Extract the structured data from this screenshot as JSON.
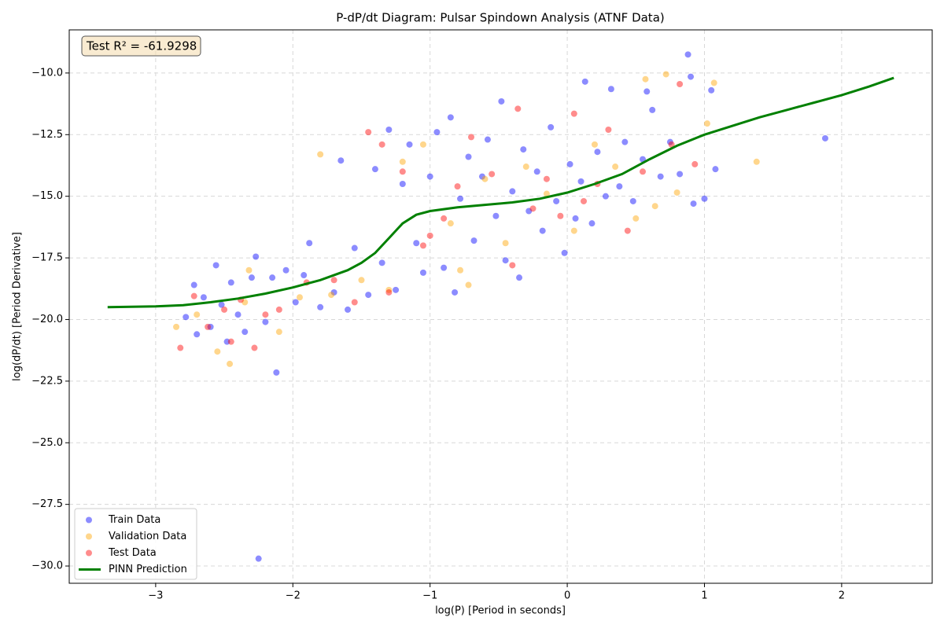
{
  "chart_data": {
    "type": "scatter",
    "title": "P-dP/dt Diagram: Pulsar Spindown Analysis (ATNF Data)",
    "x_label": "log(P) [Period in seconds]",
    "y_label": "log(dP/dt) [Period Derivative]",
    "annotation": "Test R² = -61.9298",
    "xlim": [
      -3.63,
      2.66
    ],
    "ylim": [
      -30.7,
      -8.25
    ],
    "xticks": [
      {
        "value": -3,
        "label": "−3"
      },
      {
        "value": -2,
        "label": "−2"
      },
      {
        "value": -1,
        "label": "−1"
      },
      0,
      1,
      2
    ],
    "yticks": [
      {
        "value": -30,
        "label": "−30.0"
      },
      {
        "value": -27.5,
        "label": "−27.5"
      },
      {
        "value": -25,
        "label": "−25.0"
      },
      {
        "value": -22.5,
        "label": "−22.5"
      },
      {
        "value": -20,
        "label": "−20.0"
      },
      {
        "value": -17.5,
        "label": "−17.5"
      },
      {
        "value": -15,
        "label": "−15.0"
      },
      {
        "value": -12.5,
        "label": "−12.5"
      },
      {
        "value": -10,
        "label": "−10.0"
      }
    ],
    "grid": true,
    "legend": "lower left",
    "series": [
      {
        "name": "Train Data",
        "type": "scatter",
        "color": "#0000ff",
        "x": [
          -2.78,
          -2.72,
          -2.7,
          -2.65,
          -2.6,
          -2.56,
          -2.52,
          -2.48,
          -2.45,
          -2.4,
          -2.35,
          -2.3,
          -2.27,
          -2.25,
          -2.2,
          -2.15,
          -2.12,
          -2.05,
          -1.98,
          -1.92,
          -1.88,
          -1.8,
          -1.7,
          -1.65,
          -1.6,
          -1.55,
          -1.45,
          -1.4,
          -1.35,
          -1.3,
          -1.25,
          -1.2,
          -1.15,
          -1.1,
          -1.05,
          -1.0,
          -0.95,
          -0.9,
          -0.85,
          -0.82,
          -0.78,
          -0.72,
          -0.68,
          -0.62,
          -0.58,
          -0.52,
          -0.48,
          -0.45,
          -0.4,
          -0.35,
          -0.32,
          -0.28,
          -0.22,
          -0.18,
          -0.12,
          -0.08,
          -0.02,
          0.02,
          0.06,
          0.1,
          0.13,
          0.18,
          0.22,
          0.28,
          0.32,
          0.38,
          0.42,
          0.48,
          0.55,
          0.58,
          0.62,
          0.68,
          0.75,
          0.82,
          0.88,
          0.9,
          0.92,
          1.0,
          1.05,
          1.08,
          1.88
        ],
        "values": [
          -19.9,
          -18.6,
          -20.6,
          -19.1,
          -20.3,
          -17.8,
          -19.4,
          -20.9,
          -18.5,
          -19.8,
          -20.5,
          -18.3,
          -17.45,
          -29.7,
          -20.1,
          -18.3,
          -22.15,
          -18.0,
          -19.3,
          -18.2,
          -16.9,
          -19.5,
          -18.9,
          -13.55,
          -19.6,
          -17.1,
          -19.0,
          -13.9,
          -17.7,
          -12.3,
          -18.8,
          -14.5,
          -12.9,
          -16.9,
          -18.1,
          -14.2,
          -12.4,
          -17.9,
          -11.8,
          -18.9,
          -15.1,
          -13.4,
          -16.8,
          -14.2,
          -12.7,
          -15.8,
          -11.15,
          -17.6,
          -14.8,
          -18.3,
          -13.1,
          -15.6,
          -14.0,
          -16.4,
          -12.2,
          -15.2,
          -17.3,
          -13.7,
          -15.9,
          -14.4,
          -10.35,
          -16.1,
          -13.2,
          -15.0,
          -10.65,
          -14.6,
          -12.8,
          -15.2,
          -13.5,
          -10.75,
          -11.5,
          -14.2,
          -12.8,
          -14.1,
          -9.25,
          -10.15,
          -15.3,
          -15.1,
          -10.7,
          -13.9,
          -12.65
        ]
      },
      {
        "name": "Validation Data",
        "type": "scatter",
        "color": "#ffa500",
        "x": [
          -2.85,
          -2.7,
          -2.55,
          -2.46,
          -2.35,
          -2.32,
          -2.1,
          -1.95,
          -1.8,
          -1.72,
          -1.5,
          -1.3,
          -1.2,
          -1.05,
          -0.85,
          -0.78,
          -0.72,
          -0.6,
          -0.45,
          -0.3,
          -0.15,
          0.05,
          0.2,
          0.35,
          0.5,
          0.57,
          0.64,
          0.72,
          0.8,
          1.02,
          1.07,
          1.38
        ],
        "values": [
          -20.3,
          -19.8,
          -21.3,
          -21.8,
          -19.3,
          -18.0,
          -20.5,
          -19.1,
          -13.3,
          -19.0,
          -18.4,
          -18.8,
          -13.6,
          -12.9,
          -16.1,
          -18.0,
          -18.6,
          -14.3,
          -16.9,
          -13.8,
          -14.9,
          -16.4,
          -12.9,
          -13.8,
          -15.9,
          -10.25,
          -15.4,
          -10.05,
          -14.85,
          -12.05,
          -10.4,
          -13.6
        ]
      },
      {
        "name": "Test Data",
        "type": "scatter",
        "color": "#ff0000",
        "x": [
          -2.82,
          -2.72,
          -2.62,
          -2.5,
          -2.45,
          -2.38,
          -2.28,
          -2.2,
          -2.1,
          -1.9,
          -1.7,
          -1.55,
          -1.45,
          -1.35,
          -1.3,
          -1.2,
          -1.05,
          -1.0,
          -0.9,
          -0.8,
          -0.7,
          -0.55,
          -0.4,
          -0.36,
          -0.25,
          -0.15,
          -0.05,
          0.05,
          0.12,
          0.22,
          0.3,
          0.44,
          0.55,
          0.76,
          0.82,
          0.93
        ],
        "values": [
          -21.15,
          -19.05,
          -20.3,
          -19.6,
          -20.9,
          -19.2,
          -21.15,
          -19.8,
          -19.6,
          -18.5,
          -18.4,
          -19.3,
          -12.4,
          -12.9,
          -18.9,
          -14.0,
          -17.0,
          -16.6,
          -15.9,
          -14.6,
          -12.6,
          -14.1,
          -17.8,
          -11.45,
          -15.5,
          -14.3,
          -15.8,
          -11.65,
          -15.2,
          -14.5,
          -12.3,
          -16.4,
          -14.0,
          -12.9,
          -10.45,
          -13.7
        ]
      },
      {
        "name": "PINN Prediction",
        "type": "line",
        "color": "#008000",
        "x": [
          -3.35,
          -3.0,
          -2.8,
          -2.6,
          -2.4,
          -2.2,
          -2.0,
          -1.8,
          -1.6,
          -1.5,
          -1.4,
          -1.3,
          -1.2,
          -1.1,
          -1.0,
          -0.8,
          -0.6,
          -0.4,
          -0.2,
          0.0,
          0.2,
          0.4,
          0.6,
          0.8,
          1.0,
          1.2,
          1.4,
          1.6,
          1.8,
          2.0,
          2.2,
          2.38
        ],
        "values": [
          -19.5,
          -19.47,
          -19.42,
          -19.3,
          -19.15,
          -18.95,
          -18.7,
          -18.4,
          -18.0,
          -17.7,
          -17.3,
          -16.7,
          -16.1,
          -15.75,
          -15.6,
          -15.45,
          -15.35,
          -15.25,
          -15.1,
          -14.85,
          -14.5,
          -14.1,
          -13.5,
          -12.95,
          -12.5,
          -12.15,
          -11.8,
          -11.5,
          -11.2,
          -10.9,
          -10.55,
          -10.2
        ]
      }
    ]
  }
}
